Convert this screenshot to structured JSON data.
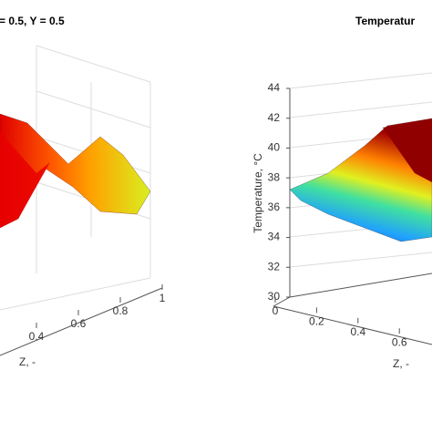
{
  "chart_data": [
    {
      "type": "surface",
      "title": "= 0.5, Y = 0.5",
      "xlabel": "Z, -",
      "xlim": [
        0,
        1
      ],
      "xticks": [
        0.4,
        0.6,
        0.8,
        1
      ]
    },
    {
      "type": "surface",
      "title": "Temperatur",
      "xlabel": "Z, -",
      "zlabel": "Temperature, °C",
      "xlim": [
        0,
        1
      ],
      "xticks": [
        0,
        0.2,
        0.4,
        0.6
      ],
      "zlim": [
        30,
        44
      ],
      "zticks": [
        30,
        32,
        34,
        36,
        38,
        40,
        42,
        44
      ]
    }
  ]
}
